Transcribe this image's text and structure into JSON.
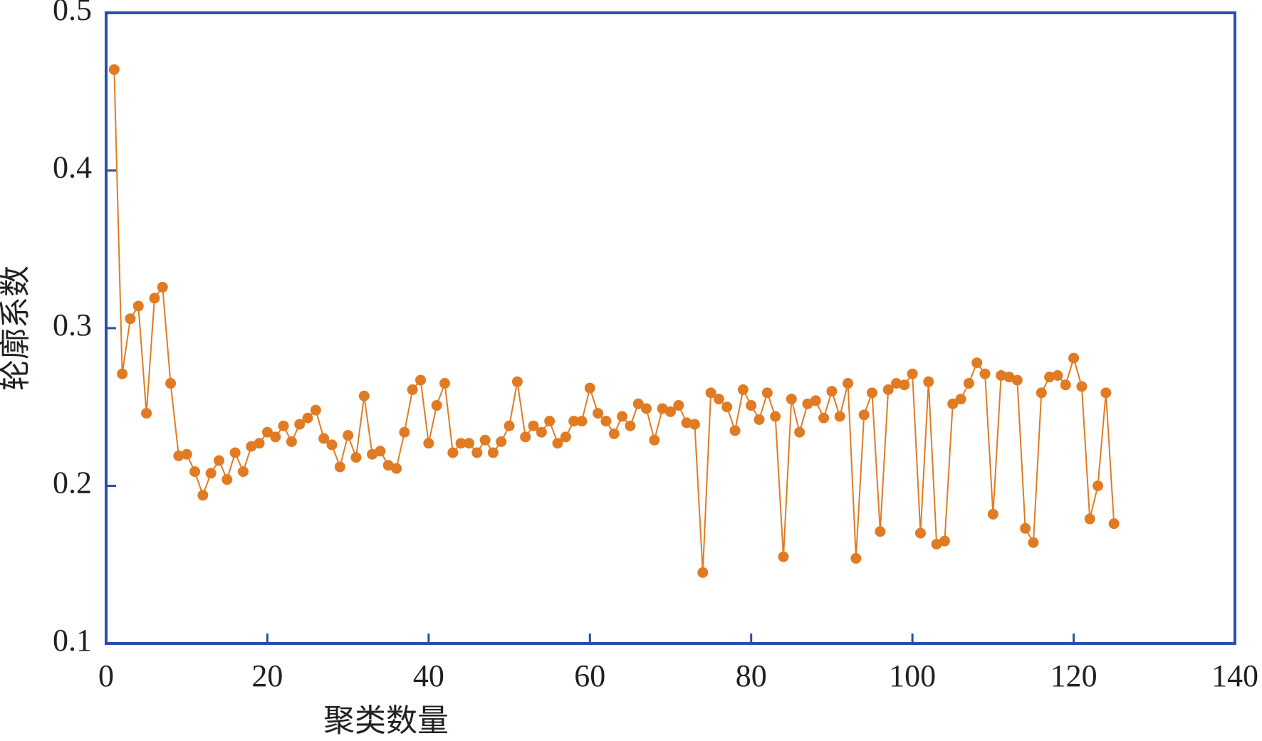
{
  "chart_data": {
    "type": "line",
    "x_label": "聚类数量",
    "y_label": "轮廓系数",
    "x": [
      1,
      2,
      3,
      4,
      5,
      6,
      7,
      8,
      9,
      10,
      11,
      12,
      13,
      14,
      15,
      16,
      17,
      18,
      19,
      20,
      21,
      22,
      23,
      24,
      25,
      26,
      27,
      28,
      29,
      30,
      31,
      32,
      33,
      34,
      35,
      36,
      37,
      38,
      39,
      40,
      41,
      42,
      43,
      44,
      45,
      46,
      47,
      48,
      49,
      50,
      51,
      52,
      53,
      54,
      55,
      56,
      57,
      58,
      59,
      60,
      61,
      62,
      63,
      64,
      65,
      66,
      67,
      68,
      69,
      70,
      71,
      72,
      73,
      74,
      75,
      76,
      77,
      78,
      79,
      80,
      81,
      82,
      83,
      84,
      85,
      86,
      87,
      88,
      89,
      90,
      91,
      92,
      93,
      94,
      95,
      96,
      97,
      98,
      99,
      100,
      101,
      102,
      103,
      104,
      105,
      106,
      107,
      108,
      109,
      110,
      111,
      112,
      113,
      114,
      115,
      116,
      117,
      118,
      119,
      120,
      121,
      122,
      123,
      124,
      125
    ],
    "series": [
      {
        "color": "#e07b24",
        "values": [
          0.464,
          0.271,
          0.306,
          0.314,
          0.246,
          0.319,
          0.326,
          0.265,
          0.219,
          0.22,
          0.209,
          0.194,
          0.208,
          0.216,
          0.204,
          0.221,
          0.209,
          0.225,
          0.227,
          0.234,
          0.231,
          0.238,
          0.228,
          0.239,
          0.243,
          0.248,
          0.23,
          0.226,
          0.212,
          0.232,
          0.218,
          0.257,
          0.22,
          0.222,
          0.213,
          0.211,
          0.234,
          0.261,
          0.267,
          0.227,
          0.251,
          0.265,
          0.221,
          0.227,
          0.227,
          0.221,
          0.229,
          0.221,
          0.228,
          0.238,
          0.266,
          0.231,
          0.238,
          0.234,
          0.241,
          0.227,
          0.231,
          0.241,
          0.241,
          0.262,
          0.246,
          0.241,
          0.233,
          0.244,
          0.238,
          0.252,
          0.249,
          0.229,
          0.249,
          0.247,
          0.251,
          0.24,
          0.239,
          0.145,
          0.259,
          0.255,
          0.25,
          0.235,
          0.261,
          0.251,
          0.242,
          0.259,
          0.244,
          0.155,
          0.255,
          0.234,
          0.252,
          0.254,
          0.243,
          0.26,
          0.244,
          0.265,
          0.154,
          0.245,
          0.259,
          0.171,
          0.261,
          0.265,
          0.264,
          0.271,
          0.17,
          0.266,
          0.163,
          0.165,
          0.252,
          0.255,
          0.265,
          0.278,
          0.271,
          0.182,
          0.27,
          0.269,
          0.267,
          0.173,
          0.164,
          0.259,
          0.269,
          0.27,
          0.264,
          0.281,
          0.263,
          0.179,
          0.2,
          0.259,
          0.176
        ]
      }
    ],
    "xlim": [
      0,
      140
    ],
    "xticks": [
      0,
      20,
      40,
      60,
      80,
      100,
      120,
      140
    ],
    "ylim": [
      0.1,
      0.5
    ],
    "yticks": [
      0.1,
      0.2,
      0.3,
      0.4,
      0.5
    ],
    "axis_color": "#2a4fa8"
  }
}
